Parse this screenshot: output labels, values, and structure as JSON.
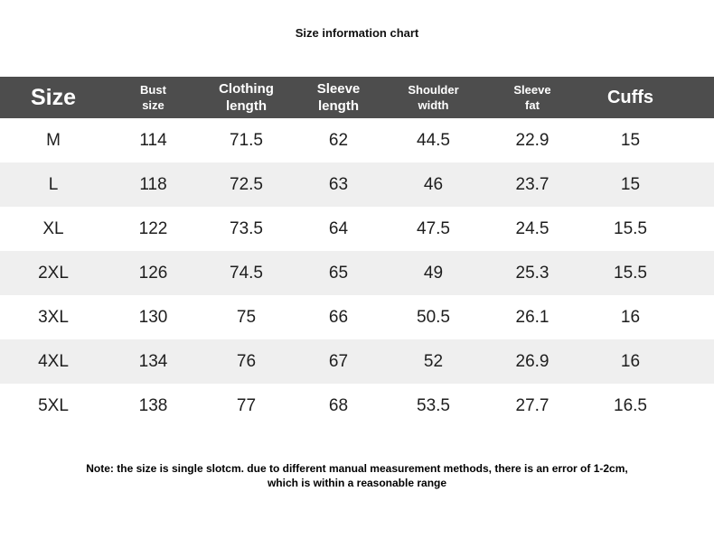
{
  "title": "Size information chart",
  "note": "Note: the size is single slotcm. due to different manual measurement methods, there is an error of 1-2cm, which is within a reasonable range",
  "colors": {
    "header_bg": "#4d4d4d",
    "header_text": "#ffffff",
    "stripe_bg": "#efefef",
    "row_bg": "#ffffff",
    "body_text": "#1e1e1e"
  },
  "table": {
    "columns": [
      {
        "label": "Size",
        "emphasis": "xl"
      },
      {
        "label": "Bust\nsize",
        "emphasis": "sm"
      },
      {
        "label": "Clothing\nlength",
        "emphasis": "md"
      },
      {
        "label": "Sleeve\nlength",
        "emphasis": "md"
      },
      {
        "label": "Shoulder\nwidth",
        "emphasis": "sm"
      },
      {
        "label": "Sleeve\nfat",
        "emphasis": "sm"
      },
      {
        "label": "Cuffs",
        "emphasis": "lg"
      }
    ],
    "rows": [
      {
        "size": "M",
        "values": [
          "114",
          "71.5",
          "62",
          "44.5",
          "22.9",
          "15"
        ]
      },
      {
        "size": "L",
        "values": [
          "118",
          "72.5",
          "63",
          "46",
          "23.7",
          "15"
        ]
      },
      {
        "size": "XL",
        "values": [
          "122",
          "73.5",
          "64",
          "47.5",
          "24.5",
          "15.5"
        ]
      },
      {
        "size": "2XL",
        "values": [
          "126",
          "74.5",
          "65",
          "49",
          "25.3",
          "15.5"
        ]
      },
      {
        "size": "3XL",
        "values": [
          "130",
          "75",
          "66",
          "50.5",
          "26.1",
          "16"
        ]
      },
      {
        "size": "4XL",
        "values": [
          "134",
          "76",
          "67",
          "52",
          "26.9",
          "16"
        ]
      },
      {
        "size": "5XL",
        "values": [
          "138",
          "77",
          "68",
          "53.5",
          "27.7",
          "16.5"
        ]
      }
    ]
  },
  "chart_data": {
    "type": "table",
    "title": "Size information chart",
    "columns": [
      "Size",
      "Bust size",
      "Clothing length",
      "Sleeve length",
      "Shoulder width",
      "Sleeve fat",
      "Cuffs"
    ],
    "rows": [
      [
        "M",
        114,
        71.5,
        62,
        44.5,
        22.9,
        15
      ],
      [
        "L",
        118,
        72.5,
        63,
        46,
        23.7,
        15
      ],
      [
        "XL",
        122,
        73.5,
        64,
        47.5,
        24.5,
        15.5
      ],
      [
        "2XL",
        126,
        74.5,
        65,
        49,
        25.3,
        15.5
      ],
      [
        "3XL",
        130,
        75,
        66,
        50.5,
        26.1,
        16
      ],
      [
        "4XL",
        134,
        76,
        67,
        52,
        26.9,
        16
      ],
      [
        "5XL",
        138,
        77,
        68,
        53.5,
        27.7,
        16.5
      ]
    ],
    "note": "Note: the size is single slotcm. due to different manual measurement methods, there is an error of 1-2cm, which is within a reasonable range",
    "layout": {
      "header_style": "dark-bar",
      "zebra_striping": true,
      "units": "cm"
    }
  }
}
